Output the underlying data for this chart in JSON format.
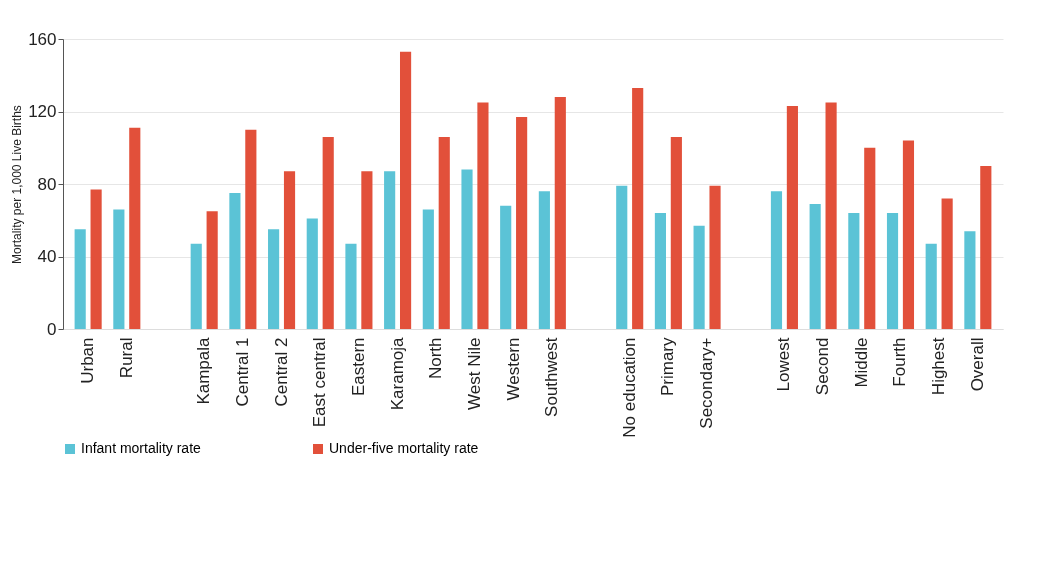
{
  "chart_data": {
    "type": "bar",
    "ylabel": "Mortality per 1,000 Live Births",
    "categories": [
      "Urban",
      "Rural",
      null,
      "Kampala",
      "Central 1",
      "Central 2",
      "East central",
      "Eastern",
      "Karamoja",
      "North",
      "West Nile",
      "Western",
      "Southwest",
      null,
      "No education",
      "Primary",
      "Secondary+",
      null,
      "Lowest",
      "Second",
      "Middle",
      "Fourth",
      "Highest",
      "Overall"
    ],
    "series": [
      {
        "name": "Infant mortality rate",
        "color": "#5bc3d6",
        "values": [
          55,
          66,
          null,
          47,
          75,
          55,
          61,
          47,
          87,
          66,
          88,
          68,
          76,
          null,
          79,
          64,
          57,
          null,
          76,
          69,
          64,
          64,
          47,
          54
        ]
      },
      {
        "name": "Under-five mortality rate",
        "color": "#e2503a",
        "values": [
          77,
          111,
          null,
          65,
          110,
          87,
          106,
          87,
          153,
          106,
          125,
          117,
          128,
          null,
          133,
          106,
          79,
          null,
          123,
          125,
          100,
          104,
          72,
          90
        ]
      }
    ],
    "ylim": [
      0,
      160
    ],
    "yticks": [
      0,
      40,
      80,
      120,
      160
    ],
    "grid": "y",
    "legend": "bottom left"
  }
}
